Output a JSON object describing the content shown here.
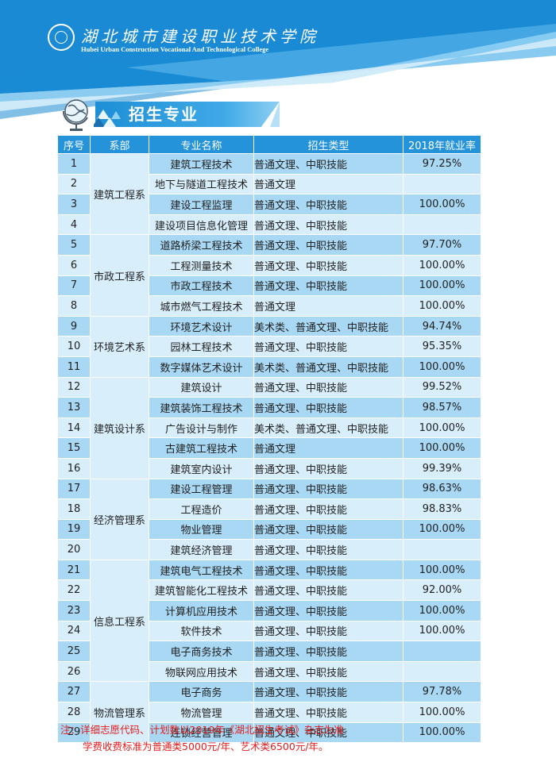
{
  "header": {
    "college_name_cn": "湖北城市建设职业技术学院",
    "college_name_en": "Hubei Urban Construction Vocational And Technological College"
  },
  "section": {
    "title": "招生专业"
  },
  "table": {
    "headers": [
      "序号",
      "系部",
      "专业名称",
      "招生类型",
      "2018年就业率"
    ],
    "departments": [
      {
        "name": "建筑工程系",
        "start": 0,
        "span": 4
      },
      {
        "name": "市政工程系",
        "start": 4,
        "span": 4
      },
      {
        "name": "环境艺术系",
        "start": 8,
        "span": 3
      },
      {
        "name": "建筑设计系",
        "start": 11,
        "span": 5
      },
      {
        "name": "经济管理系",
        "start": 16,
        "span": 4
      },
      {
        "name": "信息工程系",
        "start": 20,
        "span": 6
      },
      {
        "name": "物流管理系",
        "start": 26,
        "span": 3
      }
    ],
    "rows": [
      {
        "no": "1",
        "major": "建筑工程技术",
        "type": "普通文理、中职技能",
        "rate": "97.25%"
      },
      {
        "no": "2",
        "major": "地下与隧道工程技术",
        "type": "普通文理",
        "rate": ""
      },
      {
        "no": "3",
        "major": "建设工程监理",
        "type": "普通文理、中职技能",
        "rate": "100.00%"
      },
      {
        "no": "4",
        "major": "建设项目信息化管理",
        "type": "普通文理、中职技能",
        "rate": ""
      },
      {
        "no": "5",
        "major": "道路桥梁工程技术",
        "type": "普通文理、中职技能",
        "rate": "97.70%"
      },
      {
        "no": "6",
        "major": "工程测量技术",
        "type": "普通文理、中职技能",
        "rate": "100.00%"
      },
      {
        "no": "7",
        "major": "市政工程技术",
        "type": "普通文理、中职技能",
        "rate": "100.00%"
      },
      {
        "no": "8",
        "major": "城市燃气工程技术",
        "type": "普通文理",
        "rate": "100.00%"
      },
      {
        "no": "9",
        "major": "环境艺术设计",
        "type": "美术类、普通文理、中职技能",
        "rate": "94.74%"
      },
      {
        "no": "10",
        "major": "园林工程技术",
        "type": "普通文理、中职技能",
        "rate": "95.35%"
      },
      {
        "no": "11",
        "major": "数字媒体艺术设计",
        "type": "美术类、普通文理、中职技能",
        "rate": "100.00%"
      },
      {
        "no": "12",
        "major": "建筑设计",
        "type": "普通文理、中职技能",
        "rate": "99.52%"
      },
      {
        "no": "13",
        "major": "建筑装饰工程技术",
        "type": "普通文理、中职技能",
        "rate": "98.57%"
      },
      {
        "no": "14",
        "major": "广告设计与制作",
        "type": "美术类、普通文理、中职技能",
        "rate": "100.00%"
      },
      {
        "no": "15",
        "major": "古建筑工程技术",
        "type": "普通文理",
        "rate": "100.00%"
      },
      {
        "no": "16",
        "major": "建筑室内设计",
        "type": "普通文理、中职技能",
        "rate": "99.39%"
      },
      {
        "no": "17",
        "major": "建设工程管理",
        "type": "普通文理、中职技能",
        "rate": "98.63%"
      },
      {
        "no": "18",
        "major": "工程造价",
        "type": "普通文理、中职技能",
        "rate": "98.83%"
      },
      {
        "no": "19",
        "major": "物业管理",
        "type": "普通文理、中职技能",
        "rate": "100.00%"
      },
      {
        "no": "20",
        "major": "建筑经济管理",
        "type": "普通文理、中职技能",
        "rate": ""
      },
      {
        "no": "21",
        "major": "建筑电气工程技术",
        "type": "普通文理、中职技能",
        "rate": "100.00%"
      },
      {
        "no": "22",
        "major": "建筑智能化工程技术",
        "type": "普通文理、中职技能",
        "rate": "92.00%"
      },
      {
        "no": "23",
        "major": "计算机应用技术",
        "type": "普通文理、中职技能",
        "rate": "100.00%"
      },
      {
        "no": "24",
        "major": "软件技术",
        "type": "普通文理、中职技能",
        "rate": "100.00%"
      },
      {
        "no": "25",
        "major": "电子商务技术",
        "type": "普通文理、中职技能",
        "rate": ""
      },
      {
        "no": "26",
        "major": "物联网应用技术",
        "type": "普通文理、中职技能",
        "rate": ""
      },
      {
        "no": "27",
        "major": "电子商务",
        "type": "普通文理、中职技能",
        "rate": "97.78%"
      },
      {
        "no": "28",
        "major": "物流管理",
        "type": "普通文理、中职技能",
        "rate": "100.00%"
      },
      {
        "no": "29",
        "major": "连锁经营管理",
        "type": "普通文理、中职技能",
        "rate": "100.00%"
      }
    ]
  },
  "footnote": {
    "line1": "注：详细志愿代码、计划数以2019年《湖北招生考试》杂志为准",
    "line2": "学费收费标准为普通类5000元/年、艺术类6500元/年。"
  },
  "colors": {
    "header_blue": "#1a8ad4",
    "table_header": "#2593d9",
    "row_dark": "#a9d8f4",
    "row_light": "#d9eefb",
    "note_red": "#e02020"
  }
}
